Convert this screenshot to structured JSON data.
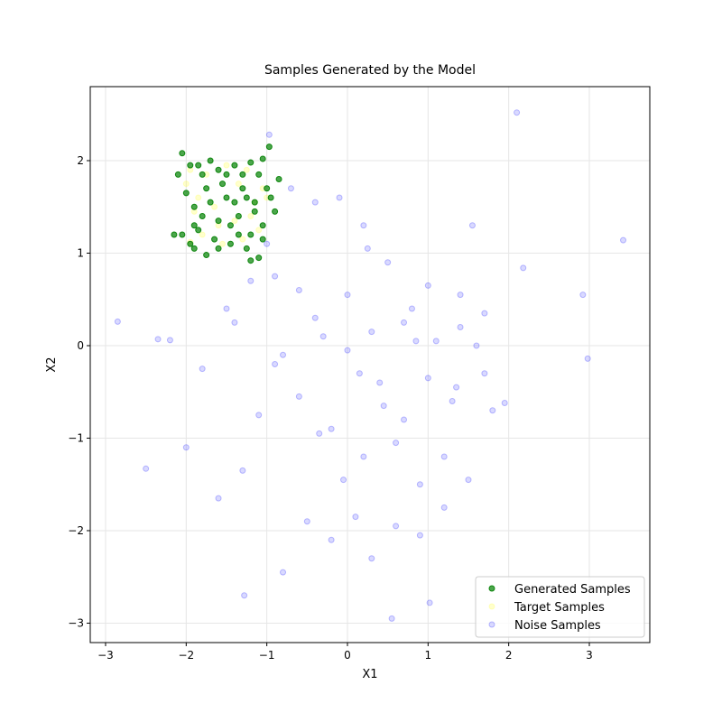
{
  "chart_data": {
    "type": "scatter",
    "title": "Samples Generated by the Model",
    "x_label": "X1",
    "y_label": "X2",
    "xlim": [
      -3.19,
      3.75
    ],
    "ylim": [
      -3.21,
      2.8
    ],
    "xticks": [
      {
        "value": -3,
        "label": "−3"
      },
      {
        "value": -2,
        "label": "−2"
      },
      {
        "value": -1,
        "label": "−1"
      },
      0,
      1,
      2,
      3
    ],
    "yticks": [
      {
        "value": -3,
        "label": "−3"
      },
      {
        "value": -2,
        "label": "−2"
      },
      {
        "value": -1,
        "label": "−1"
      },
      0,
      1,
      2
    ],
    "grid": true,
    "legend": "lower right",
    "series": [
      {
        "name": "Generated Samples",
        "color": "green",
        "x": [
          -1.95,
          -1.8,
          -1.6,
          -1.4,
          -1.2,
          -1.05,
          -0.97,
          -0.85,
          -0.9,
          -1.05,
          -1.15,
          -1.3,
          -1.5,
          -1.7,
          -1.9,
          -2.05,
          -1.85,
          -1.65,
          -1.45,
          -1.25,
          -1.1,
          -1.2,
          -1.75,
          -1.95,
          -2.1,
          -2.05,
          -1.55,
          -1.35,
          -1.6,
          -1.8,
          -1.0,
          -1.1,
          -1.3,
          -1.75,
          -2.0,
          -1.9,
          -1.45,
          -1.2,
          -1.05,
          -1.5,
          -1.7,
          -1.85,
          -1.25,
          -1.4,
          -0.95,
          -1.6,
          -1.35,
          -2.15,
          -1.9,
          -1.15
        ],
        "values": [
          1.95,
          1.85,
          1.9,
          1.95,
          1.98,
          2.02,
          2.15,
          1.8,
          1.45,
          1.3,
          1.55,
          1.7,
          1.6,
          1.55,
          1.5,
          1.2,
          1.25,
          1.15,
          1.1,
          1.05,
          0.95,
          0.92,
          0.98,
          1.1,
          1.85,
          2.08,
          1.75,
          1.4,
          1.35,
          1.4,
          1.7,
          1.85,
          1.85,
          1.7,
          1.65,
          1.3,
          1.3,
          1.2,
          1.15,
          1.85,
          2.0,
          1.95,
          1.6,
          1.55,
          1.6,
          1.05,
          1.2,
          1.2,
          1.05,
          1.45
        ]
      },
      {
        "name": "Target Samples",
        "color": "yellow",
        "x": [
          -1.95,
          -1.8,
          -1.55,
          -1.3,
          -1.1,
          -1.9,
          -1.65,
          -1.4,
          -1.15,
          -1.05,
          -2.0,
          -1.75,
          -1.5,
          -1.25,
          -1.0,
          -1.85,
          -1.6,
          -1.35,
          -1.2,
          -1.95
        ],
        "values": [
          1.12,
          1.2,
          1.1,
          1.15,
          1.25,
          1.45,
          1.5,
          1.35,
          1.55,
          1.7,
          1.75,
          1.85,
          1.95,
          1.9,
          1.6,
          1.6,
          1.3,
          1.75,
          1.4,
          1.9
        ]
      },
      {
        "name": "Noise Samples",
        "color": "blue",
        "x": [
          3.42,
          2.1,
          -2.85,
          -2.5,
          0.55,
          -1.28,
          1.02,
          2.98,
          2.92,
          2.18,
          -0.97,
          -2.2,
          -2.35,
          -2.0,
          -1.6,
          -1.3,
          -0.8,
          -0.5,
          -0.2,
          0.1,
          0.3,
          0.6,
          0.9,
          1.2,
          1.5,
          1.8,
          1.95,
          1.7,
          1.4,
          1.1,
          0.8,
          0.5,
          0.2,
          -0.1,
          -0.4,
          -0.7,
          -1.0,
          -1.2,
          -1.5,
          -1.8,
          -0.6,
          -0.3,
          0.0,
          0.4,
          0.7,
          1.0,
          1.3,
          1.6,
          -0.9,
          -0.6,
          -0.2,
          0.2,
          0.6,
          0.9,
          1.2,
          -1.1,
          -0.8,
          -0.4,
          0.0,
          0.3,
          0.7,
          1.0,
          1.4,
          1.7,
          -1.4,
          -0.9,
          0.15,
          0.45,
          -0.05,
          0.85,
          1.35,
          1.55,
          -0.35,
          0.25
        ],
        "values": [
          1.14,
          2.52,
          0.26,
          -1.33,
          -2.95,
          -2.7,
          -2.78,
          -0.14,
          0.55,
          0.84,
          2.28,
          0.06,
          0.07,
          -1.1,
          -1.65,
          -1.35,
          -2.45,
          -1.9,
          -2.1,
          -1.85,
          -2.3,
          -1.95,
          -2.05,
          -1.75,
          -1.45,
          -0.7,
          -0.62,
          -0.3,
          0.2,
          0.05,
          0.4,
          0.9,
          1.3,
          1.6,
          1.55,
          1.7,
          1.1,
          0.7,
          0.4,
          -0.25,
          0.6,
          0.1,
          -0.05,
          -0.4,
          -0.8,
          -0.35,
          -0.6,
          0.0,
          -0.2,
          -0.55,
          -0.9,
          -1.2,
          -1.05,
          -1.5,
          -1.2,
          -0.75,
          -0.1,
          0.3,
          0.55,
          0.15,
          0.25,
          0.65,
          0.55,
          0.35,
          0.25,
          0.75,
          -0.3,
          -0.65,
          -1.45,
          0.05,
          -0.45,
          1.3,
          -0.95,
          1.05
        ]
      }
    ]
  }
}
